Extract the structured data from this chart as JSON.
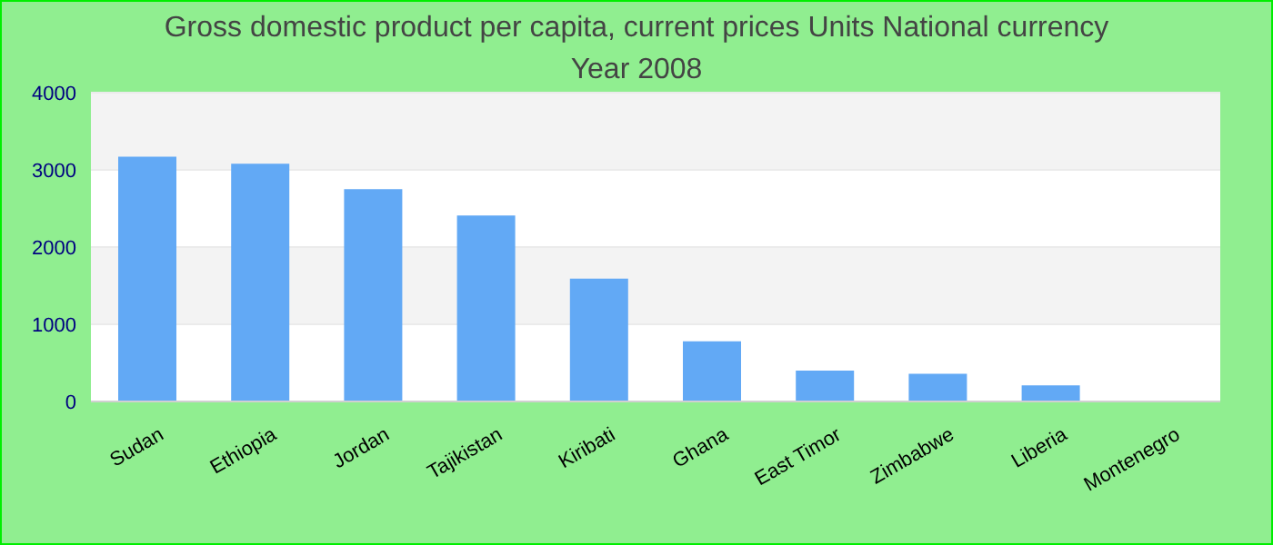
{
  "chart_data": {
    "type": "bar",
    "title": "Gross domestic product per capita, current prices Units National currency",
    "subtitle": "Year 2008",
    "categories": [
      "Sudan",
      "Ethiopia",
      "Jordan",
      "Tajikistan",
      "Kiribati",
      "Ghana",
      "East Timor",
      "Zimbabwe",
      "Liberia",
      "Montenegro"
    ],
    "values": [
      3170,
      3080,
      2750,
      2410,
      1590,
      780,
      400,
      360,
      210,
      null
    ],
    "color": "#62a9f5",
    "ylim": [
      0,
      4000
    ],
    "yticks": [
      0,
      1000,
      2000,
      3000,
      4000
    ],
    "grid": "y"
  }
}
